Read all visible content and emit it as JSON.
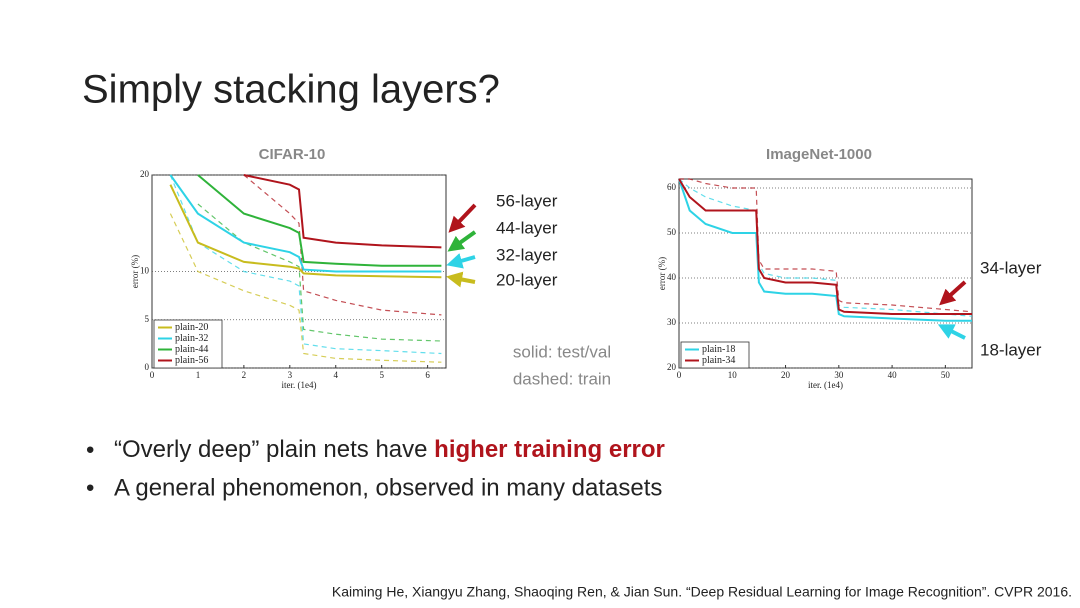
{
  "title": "Simply stacking layers?",
  "chart_data": [
    {
      "type": "line",
      "title": "CIFAR-10",
      "xlabel": "iter. (1e4)",
      "ylabel": "error (%)",
      "x": [
        0.4,
        1,
        2,
        3,
        3.2,
        3.3,
        4,
        5,
        6.3
      ],
      "xlim": [
        0,
        6.4
      ],
      "xticks": [
        0,
        1,
        2,
        3,
        4,
        5,
        6
      ],
      "ylim": [
        0,
        20
      ],
      "yticks": [
        0,
        5,
        10,
        20
      ],
      "grid": true,
      "legend": "lower left",
      "series": [
        {
          "name": "plain-20",
          "color": "#c8bc1e",
          "values": [
            19,
            13,
            11,
            10.5,
            10.3,
            9.8,
            9.6,
            9.5,
            9.4
          ],
          "train_values": [
            16,
            10,
            8,
            6.5,
            6,
            1.5,
            1,
            0.8,
            0.6
          ]
        },
        {
          "name": "plain-32",
          "color": "#2ed3e6",
          "values": [
            20,
            16,
            13,
            12,
            11.5,
            10.2,
            10,
            10,
            10
          ],
          "train_values": [
            20,
            13,
            10,
            9,
            8.5,
            2.5,
            2,
            1.8,
            1.5
          ]
        },
        {
          "name": "plain-44",
          "color": "#2fb33a",
          "values": [
            null,
            20,
            16,
            14.5,
            14,
            11,
            10.8,
            10.6,
            10.6
          ],
          "train_values": [
            null,
            17,
            13,
            11,
            10.5,
            4,
            3.5,
            3,
            2.8
          ]
        },
        {
          "name": "plain-56",
          "color": "#b0141c",
          "values": [
            null,
            null,
            20,
            19,
            18.5,
            13.5,
            13,
            12.7,
            12.5
          ],
          "train_values": [
            null,
            null,
            20,
            16,
            15,
            8,
            7,
            6,
            5.5
          ]
        }
      ],
      "arrow_labels": [
        "20-layer",
        "32-layer",
        "44-layer",
        "56-layer"
      ]
    },
    {
      "type": "line",
      "title": "ImageNet-1000",
      "xlabel": "iter. (1e4)",
      "ylabel": "error (%)",
      "x": [
        0,
        2,
        5,
        10,
        14.5,
        15,
        16,
        20,
        25,
        29.5,
        30,
        31,
        40,
        50,
        55
      ],
      "xlim": [
        0,
        55
      ],
      "xticks": [
        0,
        10,
        20,
        30,
        40,
        50
      ],
      "ylim": [
        20,
        62
      ],
      "yticks": [
        20,
        30,
        40,
        50,
        60
      ],
      "grid": true,
      "legend": "lower left",
      "series": [
        {
          "name": "plain-18",
          "color": "#2ed3e6",
          "values": [
            62,
            55,
            52,
            50,
            50,
            39,
            37,
            36.5,
            36.5,
            36,
            32,
            31.5,
            31,
            30.5,
            30.5
          ],
          "train_values": [
            62,
            60,
            58,
            56,
            55,
            43,
            41,
            40,
            40,
            39.5,
            34,
            33.5,
            33,
            32,
            31.5
          ]
        },
        {
          "name": "plain-34",
          "color": "#b0141c",
          "values": [
            62,
            58,
            55,
            55,
            55,
            42,
            40,
            39,
            39,
            38.5,
            33,
            32.5,
            32,
            32,
            32
          ],
          "train_values": [
            62,
            62,
            61,
            60,
            60,
            44,
            42,
            42,
            42,
            41.5,
            35,
            34.5,
            34,
            33,
            32.5
          ]
        }
      ],
      "arrow_labels": [
        "18-layer",
        "34-layer"
      ]
    }
  ],
  "line_style_note": [
    "solid: test/val",
    "dashed: train"
  ],
  "bullets": [
    [
      "“Overly deep” plain nets have ",
      "higher training error"
    ],
    [
      "A general phenomenon, observed in many datasets"
    ]
  ],
  "citation": "Kaiming He, Xiangyu Zhang, Shaoqing Ren, & Jian Sun. “Deep Residual Learning for Image Recognition”. CVPR 2016."
}
